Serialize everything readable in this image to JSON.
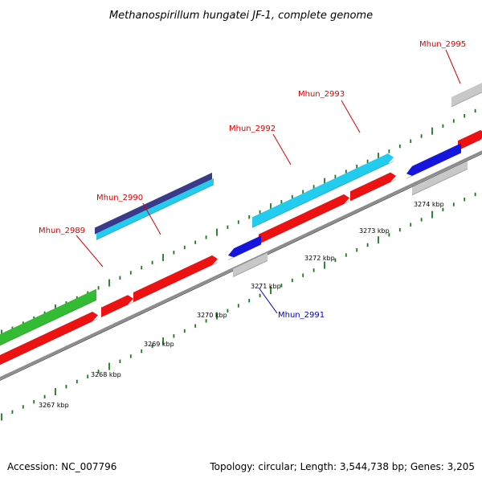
{
  "title": "Methanospirillum hungatei JF-1, complete genome",
  "footer": {
    "accession": "Accession: NC_007796",
    "topology": "Topology: circular; Length: 3,544,738 bp; Genes: 3,205"
  },
  "colors": {
    "backbone": "#8c8c8c",
    "tick": "#1a7a1a",
    "red_gene": "#ee1111",
    "green_gene": "#33bb33",
    "navy_gene": "#3a3a8c",
    "cyan_gene": "#22ccee",
    "blue_gene": "#1515dd",
    "grey_gene": "#c8c8c8",
    "label_red": "#dd0000",
    "label_blue": "#0000cc"
  },
  "ticks": {
    "labels": [
      "3267 kbp",
      "3268 kbp",
      "3269 kbp",
      "3270 kbp",
      "3271 kbp",
      "3272 kbp",
      "3273 kbp",
      "3274 kbp"
    ]
  },
  "genes": [
    {
      "id": "Mhun_2989",
      "label": "Mhun_2989",
      "label_color": "label_red"
    },
    {
      "id": "Mhun_2990",
      "label": "Mhun_2990",
      "label_color": "label_red"
    },
    {
      "id": "Mhun_2991",
      "label": "Mhun_2991",
      "label_color": "label_blue"
    },
    {
      "id": "Mhun_2992",
      "label": "Mhun_2992",
      "label_color": "label_red"
    },
    {
      "id": "Mhun_2993",
      "label": "Mhun_2993",
      "label_color": "label_red"
    },
    {
      "id": "Mhun_2995",
      "label": "Mhun_2995",
      "label_color": "label_red"
    }
  ]
}
